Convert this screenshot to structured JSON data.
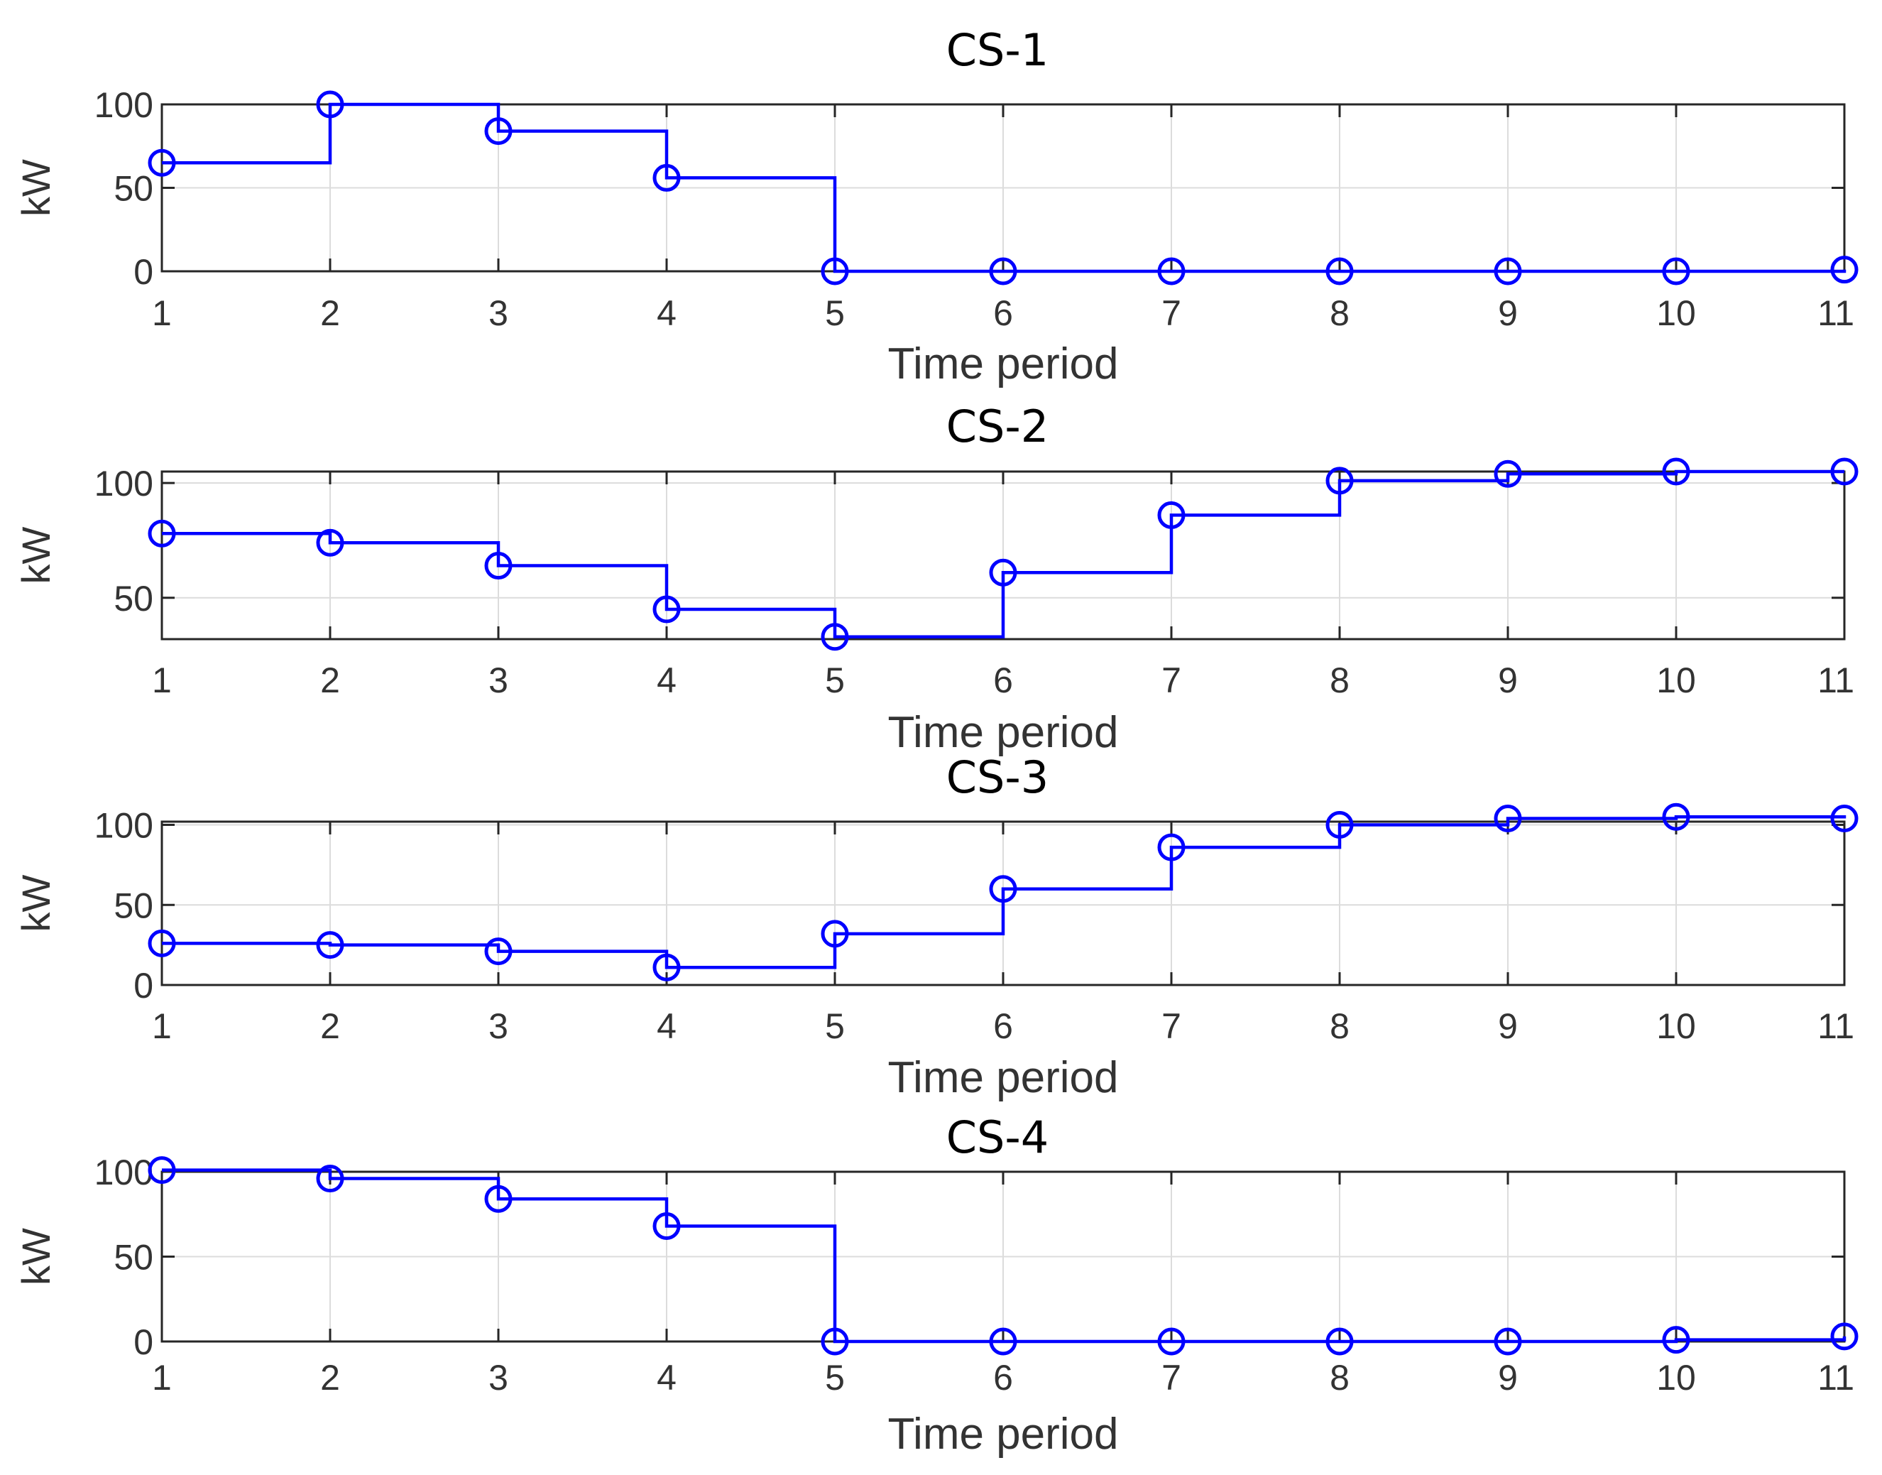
{
  "chart_data": [
    {
      "type": "line",
      "step": "post",
      "marker": "circle",
      "title": "CS-1",
      "xlabel": "Time period",
      "ylabel": "kW",
      "x": [
        1,
        2,
        3,
        4,
        5,
        6,
        7,
        8,
        9,
        10,
        11
      ],
      "xticks": [
        "1",
        "2",
        "3",
        "4",
        "5",
        "6",
        "7",
        "8",
        "9",
        "10",
        "11"
      ],
      "xlim": [
        1,
        11
      ],
      "ylim": [
        0,
        100
      ],
      "yticks": [
        {
          "value": 0,
          "label": "0"
        },
        {
          "value": 50,
          "label": "50"
        },
        {
          "value": 100,
          "label": "100"
        }
      ],
      "grid": true,
      "color": "#0000ff",
      "series": [
        {
          "values": [
            65,
            100,
            84,
            56,
            0,
            0,
            0,
            0,
            0,
            0,
            1
          ]
        }
      ]
    },
    {
      "type": "line",
      "step": "post",
      "marker": "circle",
      "title": "CS-2",
      "xlabel": "Time period",
      "ylabel": "kW",
      "x": [
        1,
        2,
        3,
        4,
        5,
        6,
        7,
        8,
        9,
        10,
        11
      ],
      "xticks": [
        "1",
        "2",
        "3",
        "4",
        "5",
        "6",
        "7",
        "8",
        "9",
        "10",
        "11"
      ],
      "xlim": [
        1,
        11
      ],
      "ylim": [
        32,
        105
      ],
      "yticks": [
        {
          "value": 50,
          "label": "50"
        },
        {
          "value": 100,
          "label": "100"
        }
      ],
      "grid": true,
      "color": "#0000ff",
      "series": [
        {
          "values": [
            78,
            74,
            64,
            45,
            33,
            61,
            86,
            101,
            104,
            105,
            105
          ]
        }
      ]
    },
    {
      "type": "line",
      "step": "post",
      "marker": "circle",
      "title": "CS-3",
      "xlabel": "Time period",
      "ylabel": "kW",
      "x": [
        1,
        2,
        3,
        4,
        5,
        6,
        7,
        8,
        9,
        10,
        11
      ],
      "xticks": [
        "1",
        "2",
        "3",
        "4",
        "5",
        "6",
        "7",
        "8",
        "9",
        "10",
        "11"
      ],
      "xlim": [
        1,
        11
      ],
      "ylim": [
        0,
        102
      ],
      "yticks": [
        {
          "value": 0,
          "label": "0"
        },
        {
          "value": 50,
          "label": "50"
        },
        {
          "value": 100,
          "label": "100"
        }
      ],
      "grid": true,
      "color": "#0000ff",
      "series": [
        {
          "values": [
            26,
            25,
            21,
            11,
            32,
            60,
            86,
            100,
            104,
            105,
            104
          ]
        }
      ]
    },
    {
      "type": "line",
      "step": "post",
      "marker": "circle",
      "title": "CS-4",
      "xlabel": "Time period",
      "ylabel": "kW",
      "x": [
        1,
        2,
        3,
        4,
        5,
        6,
        7,
        8,
        9,
        10,
        11
      ],
      "xticks": [
        "1",
        "2",
        "3",
        "4",
        "5",
        "6",
        "7",
        "8",
        "9",
        "10",
        "11"
      ],
      "xlim": [
        1,
        11
      ],
      "ylim": [
        0,
        100
      ],
      "yticks": [
        {
          "value": 0,
          "label": "0"
        },
        {
          "value": 50,
          "label": "50"
        },
        {
          "value": 100,
          "label": "100"
        }
      ],
      "grid": true,
      "color": "#0000ff",
      "series": [
        {
          "values": [
            101,
            96,
            84,
            68,
            0,
            0,
            0,
            0,
            0,
            1,
            3
          ]
        }
      ]
    }
  ]
}
